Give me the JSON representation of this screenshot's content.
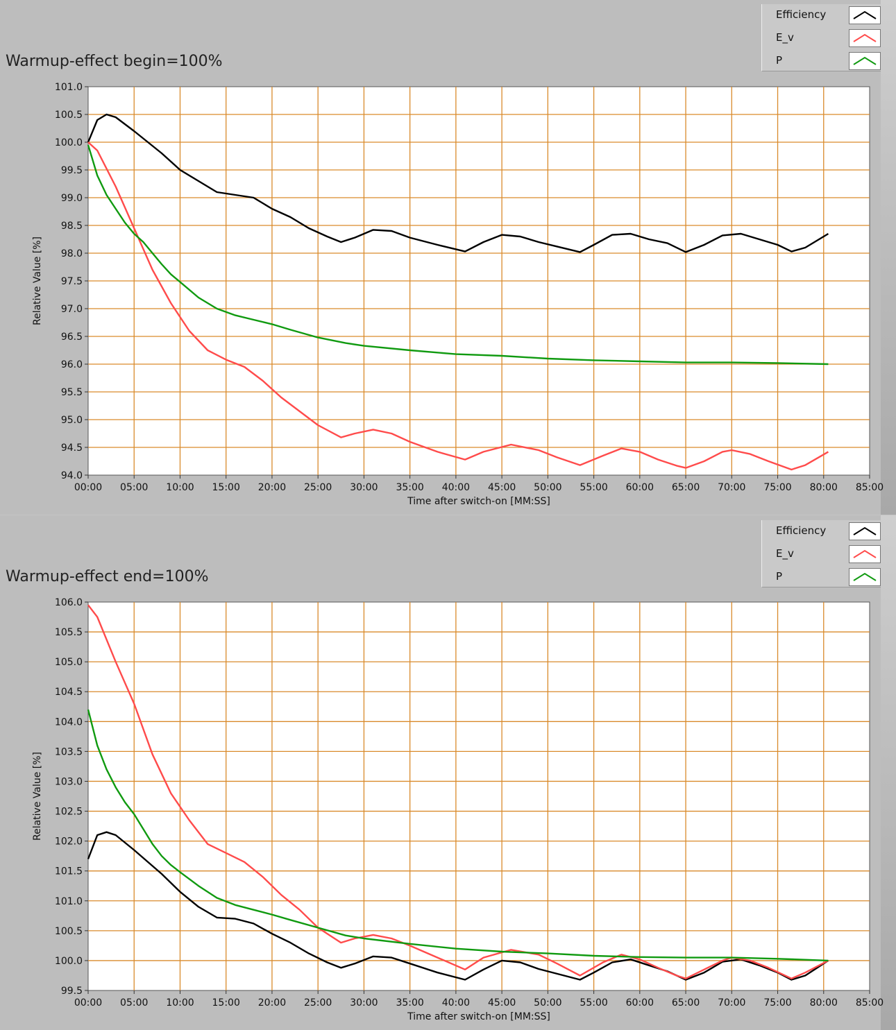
{
  "charts": [
    {
      "title": "Warmup-effect begin=100%",
      "legend": [
        {
          "name": "Efficiency",
          "color": "#000000"
        },
        {
          "name": "E_v",
          "color": "#ff4b4b"
        },
        {
          "name": "P",
          "color": "#109a10"
        }
      ]
    },
    {
      "title": "Warmup-effect end=100%",
      "legend": [
        {
          "name": "Efficiency",
          "color": "#000000"
        },
        {
          "name": "E_v",
          "color": "#ff4b4b"
        },
        {
          "name": "P",
          "color": "#109a10"
        }
      ]
    }
  ],
  "chart_data": [
    {
      "type": "line",
      "title": "Warmup-effect begin=100%",
      "xlabel": "Time after switch-on [MM:SS]",
      "ylabel": "Relative Value [%]",
      "xlim": [
        0,
        85
      ],
      "ylim": [
        94.0,
        101.0
      ],
      "xticks": [
        "00:00",
        "05:00",
        "10:00",
        "15:00",
        "20:00",
        "25:00",
        "30:00",
        "35:00",
        "40:00",
        "45:00",
        "50:00",
        "55:00",
        "60:00",
        "65:00",
        "70:00",
        "75:00",
        "80:00",
        "85:00"
      ],
      "yticks": [
        "94.0",
        "94.5",
        "95.0",
        "95.5",
        "96.0",
        "96.5",
        "97.0",
        "97.5",
        "98.0",
        "98.5",
        "99.0",
        "99.5",
        "100.0",
        "100.5",
        "101.0"
      ],
      "grid": true,
      "legend_position": "top-right",
      "series": [
        {
          "name": "Efficiency",
          "color": "#000000",
          "x": [
            0,
            1,
            2,
            3,
            5,
            8,
            10,
            12,
            14,
            16,
            18,
            20,
            22,
            24,
            26,
            27.5,
            29,
            31,
            33,
            35,
            38,
            41,
            43,
            45,
            47,
            49,
            51,
            53.5,
            55,
            57,
            59,
            61,
            63,
            65,
            67,
            69,
            71,
            73,
            75,
            76.5,
            78,
            80.5
          ],
          "y": [
            100.0,
            100.4,
            100.5,
            100.45,
            100.2,
            99.8,
            99.5,
            99.3,
            99.1,
            99.05,
            99.0,
            98.8,
            98.65,
            98.45,
            98.3,
            98.2,
            98.28,
            98.42,
            98.4,
            98.28,
            98.15,
            98.03,
            98.2,
            98.33,
            98.3,
            98.2,
            98.12,
            98.02,
            98.15,
            98.33,
            98.35,
            98.25,
            98.18,
            98.02,
            98.15,
            98.32,
            98.35,
            98.25,
            98.15,
            98.03,
            98.1,
            98.35
          ]
        },
        {
          "name": "E_v",
          "color": "#ff4b4b",
          "x": [
            0,
            1,
            3,
            5,
            7,
            9,
            11,
            13,
            15,
            17,
            19,
            21,
            23,
            25,
            27.5,
            29,
            31,
            33,
            35,
            38,
            41,
            43,
            46,
            49,
            51,
            53.5,
            56,
            58,
            60,
            62,
            64,
            65,
            67,
            69,
            70,
            72,
            74,
            76.5,
            78,
            80.5
          ],
          "y": [
            100.0,
            99.85,
            99.2,
            98.45,
            97.7,
            97.1,
            96.6,
            96.25,
            96.08,
            95.95,
            95.7,
            95.4,
            95.15,
            94.9,
            94.68,
            94.75,
            94.82,
            94.75,
            94.6,
            94.42,
            94.28,
            94.42,
            94.55,
            94.45,
            94.32,
            94.18,
            94.35,
            94.48,
            94.42,
            94.28,
            94.17,
            94.13,
            94.25,
            94.42,
            94.45,
            94.38,
            94.25,
            94.1,
            94.18,
            94.42
          ]
        },
        {
          "name": "P",
          "color": "#109a10",
          "x": [
            0,
            1,
            2,
            3,
            4,
            5,
            6,
            7,
            8,
            9,
            10,
            12,
            14,
            16,
            18,
            20,
            22,
            25,
            28,
            30,
            35,
            40,
            45,
            50,
            55,
            60,
            65,
            70,
            75,
            80.5
          ],
          "y": [
            99.95,
            99.4,
            99.05,
            98.8,
            98.55,
            98.35,
            98.2,
            98.0,
            97.8,
            97.62,
            97.48,
            97.2,
            97.0,
            96.88,
            96.8,
            96.72,
            96.62,
            96.48,
            96.38,
            96.33,
            96.25,
            96.18,
            96.15,
            96.1,
            96.07,
            96.05,
            96.03,
            96.03,
            96.02,
            96.0
          ]
        }
      ]
    },
    {
      "type": "line",
      "title": "Warmup-effect end=100%",
      "xlabel": "Time after switch-on [MM:SS]",
      "ylabel": "Relative Value [%]",
      "xlim": [
        0,
        85
      ],
      "ylim": [
        99.5,
        106.0
      ],
      "xticks": [
        "00:00",
        "05:00",
        "10:00",
        "15:00",
        "20:00",
        "25:00",
        "30:00",
        "35:00",
        "40:00",
        "45:00",
        "50:00",
        "55:00",
        "60:00",
        "65:00",
        "70:00",
        "75:00",
        "80:00",
        "85:00"
      ],
      "yticks": [
        "99.5",
        "100.0",
        "100.5",
        "101.0",
        "101.5",
        "102.0",
        "102.5",
        "103.0",
        "103.5",
        "104.0",
        "104.5",
        "105.0",
        "105.5",
        "106.0"
      ],
      "grid": true,
      "legend_position": "top-right",
      "series": [
        {
          "name": "Efficiency",
          "color": "#000000",
          "x": [
            0,
            1,
            2,
            3,
            5,
            8,
            10,
            12,
            14,
            16,
            18,
            20,
            22,
            24,
            26,
            27.5,
            29,
            31,
            33,
            35,
            38,
            41,
            43,
            45,
            47,
            49,
            51,
            53.5,
            55,
            57,
            59,
            61,
            63,
            65,
            67,
            69,
            71,
            73,
            75,
            76.5,
            78,
            80.5
          ],
          "y": [
            101.7,
            102.1,
            102.15,
            102.1,
            101.85,
            101.45,
            101.15,
            100.9,
            100.72,
            100.7,
            100.62,
            100.45,
            100.3,
            100.12,
            99.97,
            99.88,
            99.95,
            100.07,
            100.05,
            99.95,
            99.8,
            99.68,
            99.85,
            100.0,
            99.97,
            99.86,
            99.78,
            99.68,
            99.8,
            99.97,
            100.02,
            99.92,
            99.82,
            99.68,
            99.8,
            99.98,
            100.02,
            99.92,
            99.8,
            99.68,
            99.75,
            100.0
          ]
        },
        {
          "name": "E_v",
          "color": "#ff4b4b",
          "x": [
            0,
            1,
            3,
            5,
            7,
            9,
            11,
            13,
            15,
            17,
            19,
            21,
            23,
            25,
            27.5,
            29,
            31,
            33,
            35,
            38,
            41,
            43,
            46,
            49,
            51,
            53.5,
            56,
            58,
            60,
            62,
            64,
            65,
            67,
            69,
            70,
            72,
            74,
            76.5,
            78,
            80.5
          ],
          "y": [
            105.95,
            105.75,
            105.0,
            104.3,
            103.45,
            102.8,
            102.35,
            101.95,
            101.8,
            101.65,
            101.4,
            101.1,
            100.85,
            100.55,
            100.3,
            100.37,
            100.43,
            100.37,
            100.25,
            100.05,
            99.85,
            100.05,
            100.18,
            100.1,
            99.95,
            99.75,
            99.97,
            100.1,
            100.02,
            99.88,
            99.75,
            99.7,
            99.85,
            100.0,
            100.05,
            100.0,
            99.88,
            99.7,
            99.8,
            100.0
          ]
        },
        {
          "name": "P",
          "color": "#109a10",
          "x": [
            0,
            1,
            2,
            3,
            4,
            5,
            6,
            7,
            8,
            9,
            10,
            12,
            14,
            16,
            18,
            20,
            22,
            25,
            28,
            30,
            35,
            40,
            45,
            50,
            55,
            60,
            65,
            70,
            75,
            80.5
          ],
          "y": [
            104.2,
            103.6,
            103.2,
            102.9,
            102.65,
            102.45,
            102.2,
            101.95,
            101.75,
            101.6,
            101.48,
            101.25,
            101.05,
            100.93,
            100.85,
            100.77,
            100.68,
            100.55,
            100.42,
            100.37,
            100.28,
            100.2,
            100.15,
            100.12,
            100.08,
            100.06,
            100.05,
            100.05,
            100.03,
            100.0
          ]
        }
      ]
    }
  ]
}
